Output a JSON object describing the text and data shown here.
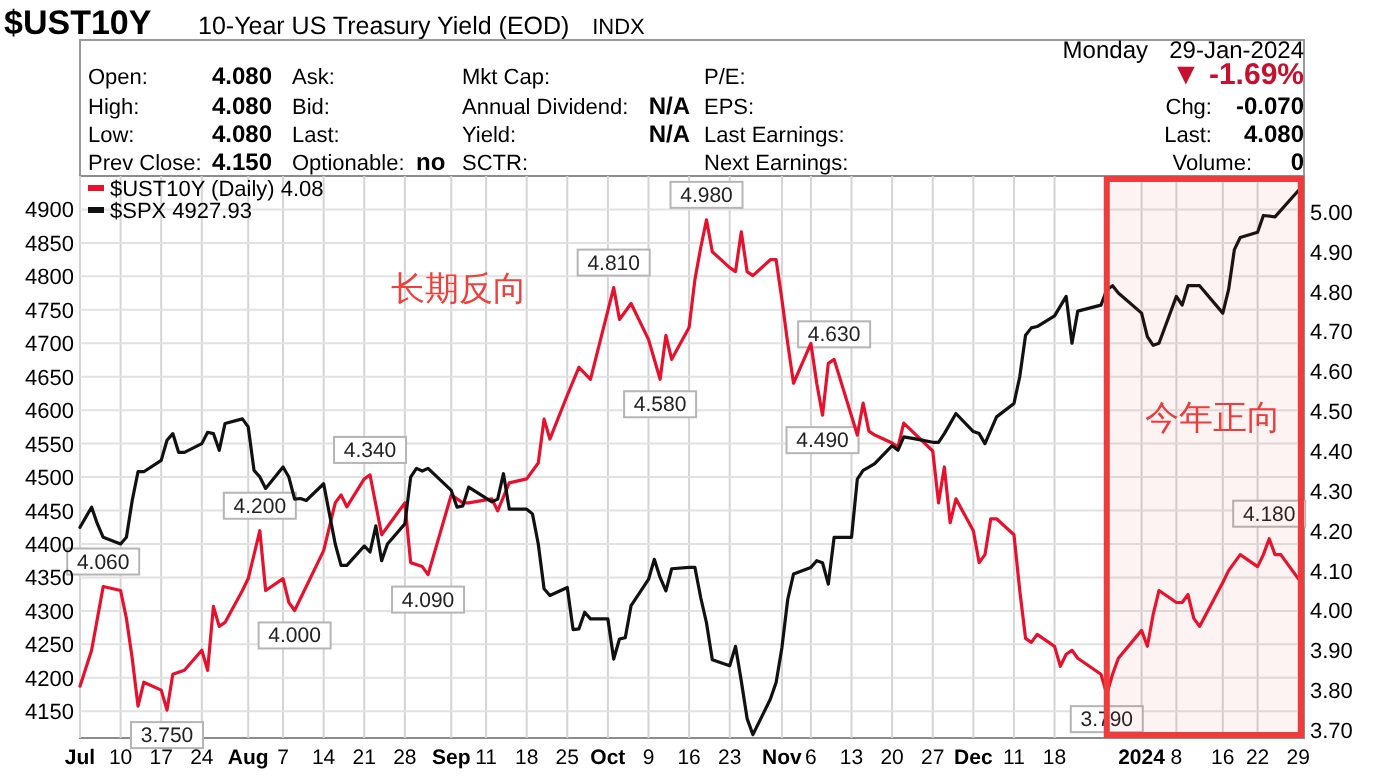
{
  "chart_data": [
    {
      "type": "other",
      "title": "$UST10Y",
      "subtitle": "10-Year US Treasury Yield (EOD)",
      "annotations": [
        "INDX",
        "Monday",
        "29-Jan-2024",
        "Open:",
        "4.080",
        "High:",
        "4.080",
        "Low:",
        "4.080",
        "Prev Close:",
        "4.150",
        "Ask:",
        "Bid:",
        "Last:",
        "Optionable:",
        "no",
        "Mkt Cap:",
        "Annual Dividend:",
        "N/A",
        "Yield:",
        "N/A",
        "SCTR:",
        "P/E:",
        "EPS:",
        "Last Earnings:",
        "Next Earnings:",
        "▼ -1.69%",
        "Chg:",
        "-0.070",
        "Last:",
        "4.080",
        "Volume:",
        "0"
      ]
    },
    {
      "type": "line",
      "grid": true,
      "legend": "top left",
      "xlim": [
        "2023-07-03",
        "2024-01-30"
      ],
      "xticks": [
        {
          "value": "2023-07-03",
          "label": "Jul"
        },
        {
          "value": "2023-07-10",
          "label": "10"
        },
        {
          "value": "2023-07-17",
          "label": "17"
        },
        {
          "value": "2023-07-24",
          "label": "24"
        },
        {
          "value": "2023-08-01",
          "label": "Aug"
        },
        {
          "value": "2023-08-07",
          "label": "7"
        },
        {
          "value": "2023-08-14",
          "label": "14"
        },
        {
          "value": "2023-08-21",
          "label": "21"
        },
        {
          "value": "2023-08-28",
          "label": "28"
        },
        {
          "value": "2023-09-05",
          "label": "Sep"
        },
        {
          "value": "2023-09-11",
          "label": "11"
        },
        {
          "value": "2023-09-18",
          "label": "18"
        },
        {
          "value": "2023-09-25",
          "label": "25"
        },
        {
          "value": "2023-10-02",
          "label": "Oct"
        },
        {
          "value": "2023-10-09",
          "label": "9"
        },
        {
          "value": "2023-10-16",
          "label": "16"
        },
        {
          "value": "2023-10-23",
          "label": "23"
        },
        {
          "value": "2023-11-01",
          "label": "Nov"
        },
        {
          "value": "2023-11-06",
          "label": "6"
        },
        {
          "value": "2023-11-13",
          "label": "13"
        },
        {
          "value": "2023-11-20",
          "label": "20"
        },
        {
          "value": "2023-11-27",
          "label": "27"
        },
        {
          "value": "2023-12-04",
          "label": "Dec"
        },
        {
          "value": "2023-12-11",
          "label": "11"
        },
        {
          "value": "2023-12-18",
          "label": "18"
        },
        {
          "value": "2024-01-02",
          "label": "2024"
        },
        {
          "value": "2024-01-08",
          "label": "8"
        },
        {
          "value": "2024-01-16",
          "label": "16"
        },
        {
          "value": "2024-01-22",
          "label": "22"
        },
        {
          "value": "2024-01-29",
          "label": "29"
        }
      ],
      "ylim": [
        4110,
        4950
      ],
      "yticks": [
        4150,
        4200,
        4250,
        4300,
        4350,
        4400,
        4450,
        4500,
        4550,
        4600,
        4650,
        4700,
        4750,
        4800,
        4850,
        4900
      ],
      "y2lim": [
        3.68,
        5.09
      ],
      "y2ticks": [
        {
          "value": 3.7,
          "label": "3.70"
        },
        {
          "value": 3.8,
          "label": "3.80"
        },
        {
          "value": 3.9,
          "label": "3.90"
        },
        {
          "value": 4.0,
          "label": "4.00"
        },
        {
          "value": 4.1,
          "label": "4.10"
        },
        {
          "value": 4.2,
          "label": "4.20"
        },
        {
          "value": 4.3,
          "label": "4.30"
        },
        {
          "value": 4.4,
          "label": "4.40"
        },
        {
          "value": 4.5,
          "label": "4.50"
        },
        {
          "value": 4.6,
          "label": "4.60"
        },
        {
          "value": 4.7,
          "label": "4.70"
        },
        {
          "value": 4.8,
          "label": "4.80"
        },
        {
          "value": 4.9,
          "label": "4.90"
        },
        {
          "value": 5.0,
          "label": "5.00"
        }
      ],
      "annotations": [
        "长期反向"
      ],
      "bands": [
        {
          "axis": "x",
          "from": "2023-12-27",
          "to": "2024-01-30",
          "label": "今年正向",
          "color": "#ee3b3b"
        }
      ],
      "series": [
        {
          "name": "$UST10Y (Daily) 4.08",
          "color": "#e8112d",
          "axis": "y2",
          "x": [
            "2023-07-03",
            "2023-07-05",
            "2023-07-07",
            "2023-07-10",
            "2023-07-11",
            "2023-07-12",
            "2023-07-13",
            "2023-07-14",
            "2023-07-17",
            "2023-07-18",
            "2023-07-19",
            "2023-07-21",
            "2023-07-24",
            "2023-07-25",
            "2023-07-26",
            "2023-07-27",
            "2023-07-28",
            "2023-07-31",
            "2023-08-01",
            "2023-08-03",
            "2023-08-04",
            "2023-08-07",
            "2023-08-08",
            "2023-08-09",
            "2023-08-14",
            "2023-08-16",
            "2023-08-17",
            "2023-08-18",
            "2023-08-21",
            "2023-08-22",
            "2023-08-24",
            "2023-08-28",
            "2023-08-29",
            "2023-08-31",
            "2023-09-01",
            "2023-09-05",
            "2023-09-07",
            "2023-09-08",
            "2023-09-12",
            "2023-09-13",
            "2023-09-15",
            "2023-09-18",
            "2023-09-20",
            "2023-09-21",
            "2023-09-22",
            "2023-09-25",
            "2023-09-27",
            "2023-09-29",
            "2023-10-03",
            "2023-10-04",
            "2023-10-06",
            "2023-10-09",
            "2023-10-11",
            "2023-10-12",
            "2023-10-13",
            "2023-10-16",
            "2023-10-17",
            "2023-10-18",
            "2023-10-19",
            "2023-10-20",
            "2023-10-23",
            "2023-10-24",
            "2023-10-25",
            "2023-10-26",
            "2023-10-27",
            "2023-10-30",
            "2023-10-31",
            "2023-11-01",
            "2023-11-02",
            "2023-11-03",
            "2023-11-06",
            "2023-11-07",
            "2023-11-08",
            "2023-11-09",
            "2023-11-10",
            "2023-11-14",
            "2023-11-15",
            "2023-11-16",
            "2023-11-17",
            "2023-11-20",
            "2023-11-21",
            "2023-11-22",
            "2023-11-27",
            "2023-11-28",
            "2023-11-29",
            "2023-11-30",
            "2023-12-01",
            "2023-12-04",
            "2023-12-05",
            "2023-12-06",
            "2023-12-07",
            "2023-12-08",
            "2023-12-11",
            "2023-12-12",
            "2023-12-13",
            "2023-12-14",
            "2023-12-15",
            "2023-12-18",
            "2023-12-19",
            "2023-12-20",
            "2023-12-21",
            "2023-12-22",
            "2023-12-26",
            "2023-12-27",
            "2023-12-28",
            "2023-12-29",
            "2024-01-02",
            "2024-01-03",
            "2024-01-04",
            "2024-01-05",
            "2024-01-08",
            "2024-01-09",
            "2024-01-10",
            "2024-01-11",
            "2024-01-12",
            "2024-01-16",
            "2024-01-17",
            "2024-01-18",
            "2024-01-19",
            "2024-01-22",
            "2024-01-23",
            "2024-01-24",
            "2024-01-25",
            "2024-01-26",
            "2024-01-29"
          ],
          "values": [
            3.81,
            3.9,
            4.06,
            4.05,
            3.98,
            3.88,
            3.76,
            3.82,
            3.8,
            3.75,
            3.84,
            3.85,
            3.9,
            3.85,
            4.01,
            3.96,
            3.97,
            4.05,
            4.08,
            4.2,
            4.05,
            4.08,
            4.02,
            4.0,
            4.15,
            4.27,
            4.29,
            4.26,
            4.33,
            4.34,
            4.19,
            4.27,
            4.12,
            4.11,
            4.09,
            4.29,
            4.27,
            4.27,
            4.28,
            4.25,
            4.32,
            4.33,
            4.37,
            4.48,
            4.43,
            4.54,
            4.61,
            4.58,
            4.81,
            4.73,
            4.77,
            4.68,
            4.58,
            4.69,
            4.63,
            4.71,
            4.83,
            4.91,
            4.98,
            4.9,
            4.86,
            4.85,
            4.95,
            4.85,
            4.84,
            4.88,
            4.88,
            4.78,
            4.67,
            4.57,
            4.67,
            4.57,
            4.49,
            4.62,
            4.63,
            4.44,
            4.52,
            4.45,
            4.44,
            4.42,
            4.41,
            4.47,
            4.4,
            4.27,
            4.36,
            4.22,
            4.28,
            4.2,
            4.12,
            4.14,
            4.23,
            4.23,
            4.19,
            4.05,
            3.93,
            3.92,
            3.94,
            3.91,
            3.86,
            3.89,
            3.9,
            3.88,
            3.84,
            3.79,
            3.84,
            3.88,
            3.95,
            3.91,
            3.99,
            4.05,
            4.02,
            4.02,
            4.04,
            3.98,
            3.96,
            4.07,
            4.1,
            4.12,
            4.14,
            4.11,
            4.14,
            4.18,
            4.14,
            4.14,
            4.08
          ],
          "value_labels": [
            null,
            null,
            "4.060",
            null,
            null,
            null,
            null,
            null,
            null,
            "3.750",
            null,
            null,
            null,
            null,
            null,
            null,
            null,
            null,
            null,
            "4.200",
            null,
            null,
            null,
            "4.000",
            null,
            null,
            null,
            null,
            null,
            "4.340",
            null,
            null,
            null,
            null,
            "4.090",
            null,
            null,
            null,
            null,
            null,
            null,
            null,
            null,
            null,
            null,
            null,
            null,
            null,
            "4.810",
            null,
            null,
            null,
            "4.580",
            null,
            null,
            null,
            null,
            null,
            "4.980",
            null,
            null,
            null,
            null,
            null,
            null,
            null,
            null,
            null,
            null,
            null,
            null,
            null,
            "4.490",
            null,
            "4.630",
            null,
            null,
            null,
            null,
            null,
            null,
            null,
            null,
            null,
            null,
            null,
            null,
            null,
            null,
            null,
            null,
            null,
            null,
            null,
            null,
            null,
            null,
            null,
            null,
            null,
            null,
            null,
            null,
            "3.790",
            null,
            null,
            null,
            null,
            null,
            null,
            null,
            null,
            null,
            null,
            null,
            null,
            null,
            null,
            null,
            null,
            null,
            "4.180",
            null,
            null,
            null
          ]
        },
        {
          "name": "$SPX 4927.93",
          "color": "#111111",
          "x": [
            "2023-07-03",
            "2023-07-05",
            "2023-07-06",
            "2023-07-07",
            "2023-07-10",
            "2023-07-11",
            "2023-07-12",
            "2023-07-13",
            "2023-07-14",
            "2023-07-17",
            "2023-07-18",
            "2023-07-19",
            "2023-07-20",
            "2023-07-21",
            "2023-07-24",
            "2023-07-25",
            "2023-07-26",
            "2023-07-27",
            "2023-07-28",
            "2023-07-31",
            "2023-08-01",
            "2023-08-02",
            "2023-08-03",
            "2023-08-04",
            "2023-08-07",
            "2023-08-08",
            "2023-08-09",
            "2023-08-10",
            "2023-08-11",
            "2023-08-14",
            "2023-08-15",
            "2023-08-16",
            "2023-08-17",
            "2023-08-18",
            "2023-08-21",
            "2023-08-22",
            "2023-08-23",
            "2023-08-24",
            "2023-08-25",
            "2023-08-28",
            "2023-08-29",
            "2023-08-30",
            "2023-08-31",
            "2023-09-01",
            "2023-09-05",
            "2023-09-06",
            "2023-09-07",
            "2023-09-08",
            "2023-09-12",
            "2023-09-13",
            "2023-09-14",
            "2023-09-15",
            "2023-09-18",
            "2023-09-19",
            "2023-09-20",
            "2023-09-21",
            "2023-09-22",
            "2023-09-25",
            "2023-09-26",
            "2023-09-27",
            "2023-09-28",
            "2023-09-29",
            "2023-10-02",
            "2023-10-03",
            "2023-10-04",
            "2023-10-05",
            "2023-10-06",
            "2023-10-09",
            "2023-10-10",
            "2023-10-11",
            "2023-10-12",
            "2023-10-13",
            "2023-10-16",
            "2023-10-17",
            "2023-10-18",
            "2023-10-19",
            "2023-10-20",
            "2023-10-23",
            "2023-10-24",
            "2023-10-25",
            "2023-10-26",
            "2023-10-27",
            "2023-10-30",
            "2023-10-31",
            "2023-11-01",
            "2023-11-02",
            "2023-11-03",
            "2023-11-06",
            "2023-11-07",
            "2023-11-08",
            "2023-11-09",
            "2023-11-10",
            "2023-11-13",
            "2023-11-14",
            "2023-11-15",
            "2023-11-16",
            "2023-11-17",
            "2023-11-20",
            "2023-11-21",
            "2023-11-22",
            "2023-11-24",
            "2023-11-27",
            "2023-11-28",
            "2023-11-29",
            "2023-12-01",
            "2023-12-04",
            "2023-12-05",
            "2023-12-06",
            "2023-12-08",
            "2023-12-11",
            "2023-12-12",
            "2023-12-13",
            "2023-12-14",
            "2023-12-15",
            "2023-12-18",
            "2023-12-20",
            "2023-12-21",
            "2023-12-22",
            "2023-12-26",
            "2023-12-27",
            "2023-12-28",
            "2023-12-29",
            "2024-01-02",
            "2024-01-03",
            "2024-01-04",
            "2024-01-05",
            "2024-01-08",
            "2024-01-09",
            "2024-01-10",
            "2024-01-11",
            "2024-01-12",
            "2024-01-16",
            "2024-01-17",
            "2024-01-18",
            "2024-01-19",
            "2024-01-22",
            "2024-01-23",
            "2024-01-25",
            "2024-01-29"
          ],
          "values": [
            4425,
            4455,
            4430,
            4410,
            4400,
            4410,
            4465,
            4508,
            4508,
            4525,
            4555,
            4565,
            4537,
            4537,
            4550,
            4567,
            4565,
            4540,
            4580,
            4587,
            4575,
            4510,
            4500,
            4483,
            4515,
            4500,
            4467,
            4468,
            4465,
            4490,
            4445,
            4400,
            4368,
            4368,
            4397,
            4388,
            4427,
            4375,
            4400,
            4430,
            4500,
            4513,
            4509,
            4513,
            4480,
            4455,
            4457,
            4485,
            4463,
            4467,
            4505,
            4452,
            4452,
            4445,
            4400,
            4333,
            4323,
            4335,
            4272,
            4273,
            4298,
            4288,
            4288,
            4228,
            4258,
            4260,
            4308,
            4347,
            4377,
            4350,
            4330,
            4363,
            4365,
            4365,
            4320,
            4282,
            4227,
            4218,
            4247,
            4195,
            4139,
            4115,
            4168,
            4193,
            4245,
            4317,
            4355,
            4365,
            4375,
            4372,
            4340,
            4410,
            4410,
            4497,
            4510,
            4515,
            4520,
            4547,
            4540,
            4560,
            4557,
            4552,
            4552,
            4565,
            4595,
            4568,
            4565,
            4550,
            4590,
            4610,
            4650,
            4712,
            4723,
            4725,
            4741,
            4770,
            4700,
            4748,
            4757,
            4780,
            4786,
            4775,
            4745,
            4710,
            4697,
            4700,
            4770,
            4757,
            4786,
            4786,
            4786,
            4745,
            4780,
            4840,
            4858,
            4866,
            4891,
            4889,
            4928
          ]
        }
      ]
    }
  ]
}
